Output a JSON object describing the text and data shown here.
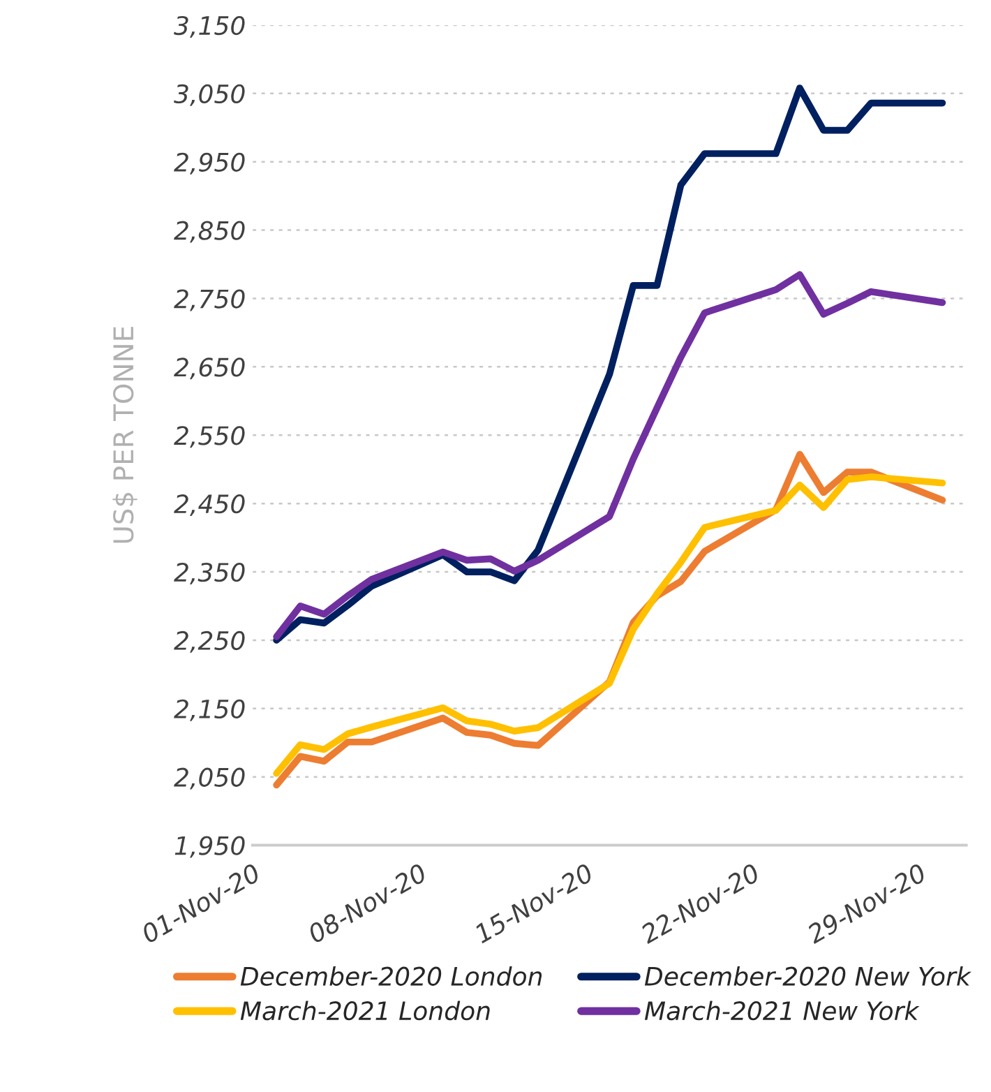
{
  "chart_data": {
    "type": "line",
    "ylabel": "US$ PER TONNE",
    "x": [
      "2020-11-02",
      "2020-11-03",
      "2020-11-04",
      "2020-11-05",
      "2020-11-06",
      "2020-11-09",
      "2020-11-10",
      "2020-11-11",
      "2020-11-12",
      "2020-11-13",
      "2020-11-16",
      "2020-11-17",
      "2020-11-18",
      "2020-11-19",
      "2020-11-20",
      "2020-11-23",
      "2020-11-24",
      "2020-11-25",
      "2020-11-26",
      "2020-11-27",
      "2020-11-30"
    ],
    "series": [
      {
        "name": "December-2020 London",
        "color": "#ed7d31",
        "values": [
          2038,
          2080,
          2073,
          2101,
          2101,
          2136,
          2115,
          2111,
          2099,
          2096,
          2189,
          2276,
          2315,
          2336,
          2380,
          2441,
          2522,
          2466,
          2496,
          2496,
          2455
        ]
      },
      {
        "name": "March-2021 London",
        "color": "#ffc000",
        "values": [
          2055,
          2097,
          2090,
          2113,
          2123,
          2151,
          2132,
          2127,
          2117,
          2122,
          2187,
          2266,
          2318,
          2364,
          2415,
          2440,
          2477,
          2444,
          2485,
          2489,
          2480
        ]
      },
      {
        "name": "December-2020 New York",
        "color": "#002060",
        "values": [
          2250,
          2280,
          2275,
          2301,
          2329,
          2375,
          2350,
          2350,
          2337,
          2382,
          2639,
          2769,
          2769,
          2916,
          2962,
          2962,
          3058,
          2996,
          2996,
          3036,
          3036
        ]
      },
      {
        "name": "March-2021 New York",
        "color": "#7030a0",
        "values": [
          2255,
          2300,
          2288,
          2315,
          2339,
          2379,
          2367,
          2369,
          2351,
          2367,
          2431,
          2515,
          2590,
          2664,
          2729,
          2763,
          2785,
          2727,
          2743,
          2760,
          2744
        ]
      }
    ],
    "xlim": [
      "2020-11-01",
      "2020-12-01"
    ],
    "xticks": [
      {
        "value": "2020-11-01",
        "label": "01-Nov-20"
      },
      {
        "value": "2020-11-08",
        "label": "08-Nov-20"
      },
      {
        "value": "2020-11-15",
        "label": "15-Nov-20"
      },
      {
        "value": "2020-11-22",
        "label": "22-Nov-20"
      },
      {
        "value": "2020-11-29",
        "label": "29-Nov-20"
      }
    ],
    "ylim": [
      1950,
      3150
    ],
    "yticks": [
      {
        "value": 1950,
        "label": "1,950"
      },
      {
        "value": 2050,
        "label": "2,050"
      },
      {
        "value": 2150,
        "label": "2,150"
      },
      {
        "value": 2250,
        "label": "2,250"
      },
      {
        "value": 2350,
        "label": "2,350"
      },
      {
        "value": 2450,
        "label": "2,450"
      },
      {
        "value": 2550,
        "label": "2,550"
      },
      {
        "value": 2650,
        "label": "2,650"
      },
      {
        "value": 2750,
        "label": "2,750"
      },
      {
        "value": 2850,
        "label": "2,850"
      },
      {
        "value": 2950,
        "label": "2,950"
      },
      {
        "value": 3050,
        "label": "3,050"
      },
      {
        "value": 3150,
        "label": "3,150"
      }
    ],
    "grid": "y",
    "legend": "bottom",
    "marker": "none",
    "line_style": "solid"
  }
}
